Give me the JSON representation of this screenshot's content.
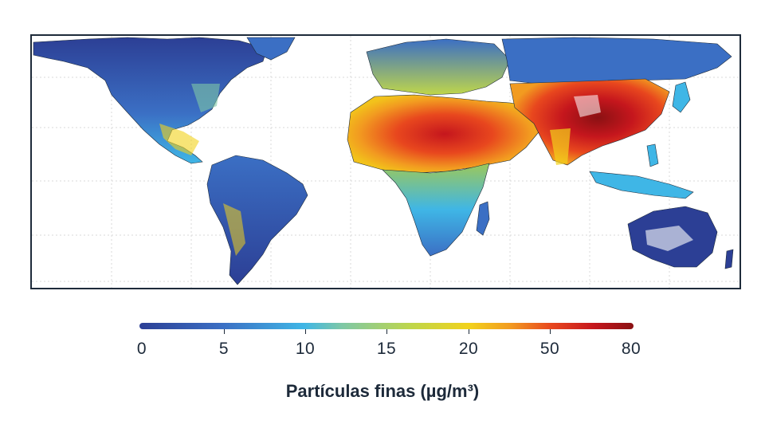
{
  "legend": {
    "title": "Partículas finas (µg/m³)",
    "ticks": [
      "0",
      "5",
      "10",
      "15",
      "20",
      "50",
      "80"
    ],
    "gradient_colors": [
      "#2c3f95",
      "#3b6fc4",
      "#3fb6e6",
      "#7ec8a6",
      "#bfd64a",
      "#f2d21b",
      "#f29b20",
      "#e8471e",
      "#c5161d",
      "#8a1113"
    ]
  },
  "map": {
    "ocean_color": "#ffffff",
    "low_color": "#3556a8",
    "mid_color": "#f2d21b",
    "high_color": "#c5161d",
    "border_color": "#1e2b3a"
  }
}
